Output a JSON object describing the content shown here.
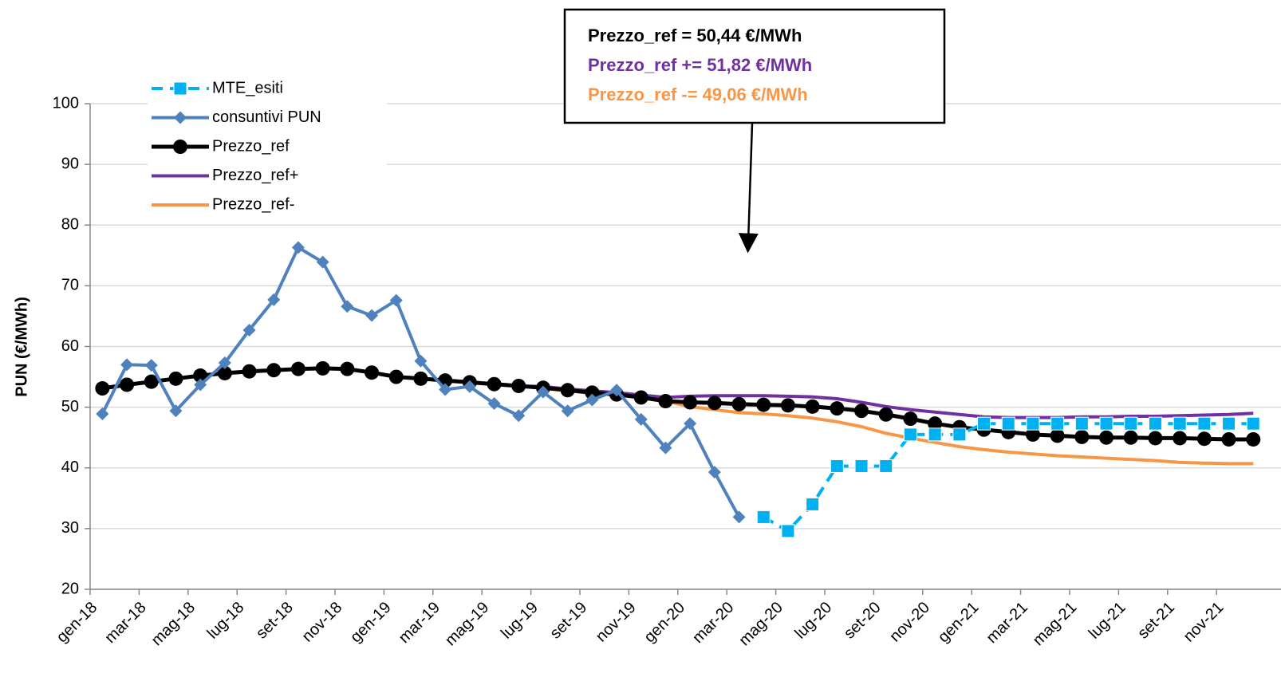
{
  "chart_data": {
    "type": "line",
    "y_label": "PUN (€/MWh)",
    "categories": [
      "gen-18",
      null,
      "mar-18",
      null,
      "mag-18",
      null,
      "lug-18",
      null,
      "set-18",
      null,
      "nov-18",
      null,
      "gen-19",
      null,
      "mar-19",
      null,
      "mag-19",
      null,
      "lug-19",
      null,
      "set-19",
      null,
      "nov-19",
      null,
      "gen-20",
      null,
      "mar-20",
      null,
      "mag-20",
      null,
      "lug-20",
      null,
      "set-20",
      null,
      "nov-20",
      null,
      "gen-21",
      null,
      "mar-21",
      null,
      "mag-21",
      null,
      "lug-21",
      null,
      "set-21",
      null,
      "nov-21",
      null
    ],
    "ylim": [
      20,
      100
    ],
    "yticks": [
      20,
      30,
      40,
      50,
      60,
      70,
      80,
      90,
      100
    ],
    "grid": true,
    "legend": "top-left",
    "series": [
      {
        "name": "MTE_esiti",
        "color": "#00b0f0",
        "dashed": true,
        "marker": "square",
        "line_width": 4,
        "values": [
          null,
          null,
          null,
          null,
          null,
          null,
          null,
          null,
          null,
          null,
          null,
          null,
          null,
          null,
          null,
          null,
          null,
          null,
          null,
          null,
          null,
          null,
          null,
          null,
          null,
          null,
          null,
          31.9,
          29.6,
          34.0,
          40.3,
          40.3,
          40.3,
          45.5,
          45.5,
          45.5,
          47.3,
          47.3,
          47.3,
          47.3,
          47.3,
          47.3,
          47.3,
          47.3,
          47.3,
          47.3,
          47.3,
          47.3
        ]
      },
      {
        "name": "consuntivi PUN",
        "color": "#4f81bd",
        "dashed": false,
        "marker": "diamond",
        "line_width": 4,
        "values": [
          48.9,
          57.0,
          56.9,
          49.4,
          53.7,
          57.3,
          62.7,
          67.7,
          76.3,
          73.9,
          66.6,
          65.1,
          67.6,
          57.6,
          52.9,
          53.4,
          50.6,
          48.6,
          52.5,
          49.4,
          51.2,
          52.8,
          48.0,
          43.3,
          47.3,
          39.3,
          31.9,
          null,
          null,
          null,
          null,
          null,
          null,
          null,
          null,
          null,
          null,
          null,
          null,
          null,
          null,
          null,
          null,
          null,
          null,
          null,
          null,
          null
        ]
      },
      {
        "name": "Prezzo_ref",
        "color": "#000000",
        "dashed": false,
        "marker": "circle",
        "line_width": 5,
        "values": [
          53.1,
          53.7,
          54.2,
          54.7,
          55.2,
          55.6,
          55.9,
          56.1,
          56.3,
          56.4,
          56.3,
          55.7,
          55.0,
          54.7,
          54.4,
          54.1,
          53.8,
          53.5,
          53.2,
          52.8,
          52.4,
          52.1,
          51.6,
          51.0,
          50.8,
          50.7,
          50.5,
          50.4,
          50.3,
          50.1,
          49.8,
          49.4,
          48.8,
          48.1,
          47.3,
          46.7,
          46.3,
          45.9,
          45.5,
          45.3,
          45.1,
          45.0,
          45.0,
          44.9,
          44.9,
          44.8,
          44.7,
          44.7
        ]
      },
      {
        "name": "Prezzo_ref+",
        "color": "#7030a0",
        "dashed": false,
        "marker": "none",
        "line_width": 4,
        "values": [
          53.1,
          53.7,
          54.2,
          54.7,
          55.2,
          55.6,
          55.9,
          56.1,
          56.3,
          56.4,
          56.3,
          55.7,
          55.0,
          54.7,
          54.4,
          54.1,
          53.8,
          53.5,
          53.4,
          53.0,
          52.7,
          52.4,
          52.0,
          51.6,
          51.8,
          51.9,
          51.9,
          51.9,
          51.8,
          51.7,
          51.4,
          50.8,
          50.1,
          49.6,
          49.2,
          48.8,
          48.4,
          48.3,
          48.3,
          48.3,
          48.4,
          48.4,
          48.5,
          48.5,
          48.6,
          48.7,
          48.8,
          49.0
        ]
      },
      {
        "name": "Prezzo_ref-",
        "color": "#f79646",
        "dashed": false,
        "marker": "none",
        "line_width": 4,
        "values": [
          53.1,
          53.7,
          54.2,
          54.7,
          55.2,
          55.6,
          55.9,
          56.1,
          56.3,
          56.4,
          56.3,
          55.7,
          55.0,
          54.7,
          54.4,
          54.1,
          53.8,
          53.5,
          53.1,
          52.7,
          52.3,
          52.0,
          51.6,
          51.0,
          50.1,
          49.6,
          49.1,
          48.9,
          48.6,
          48.2,
          47.6,
          46.8,
          45.7,
          44.9,
          44.2,
          43.5,
          43.0,
          42.6,
          42.3,
          42.0,
          41.8,
          41.6,
          41.4,
          41.2,
          40.9,
          40.8,
          40.7,
          40.7
        ]
      }
    ],
    "annotations": [
      {
        "text": "Prezzo_ref = 50,44 €/MWh",
        "color": "#000000"
      },
      {
        "text": "Prezzo_ref += 51,82 €/MWh",
        "color": "#7030a0"
      },
      {
        "text": "Prezzo_ref -= 49,06 €/MWh",
        "color": "#f79646"
      }
    ]
  }
}
